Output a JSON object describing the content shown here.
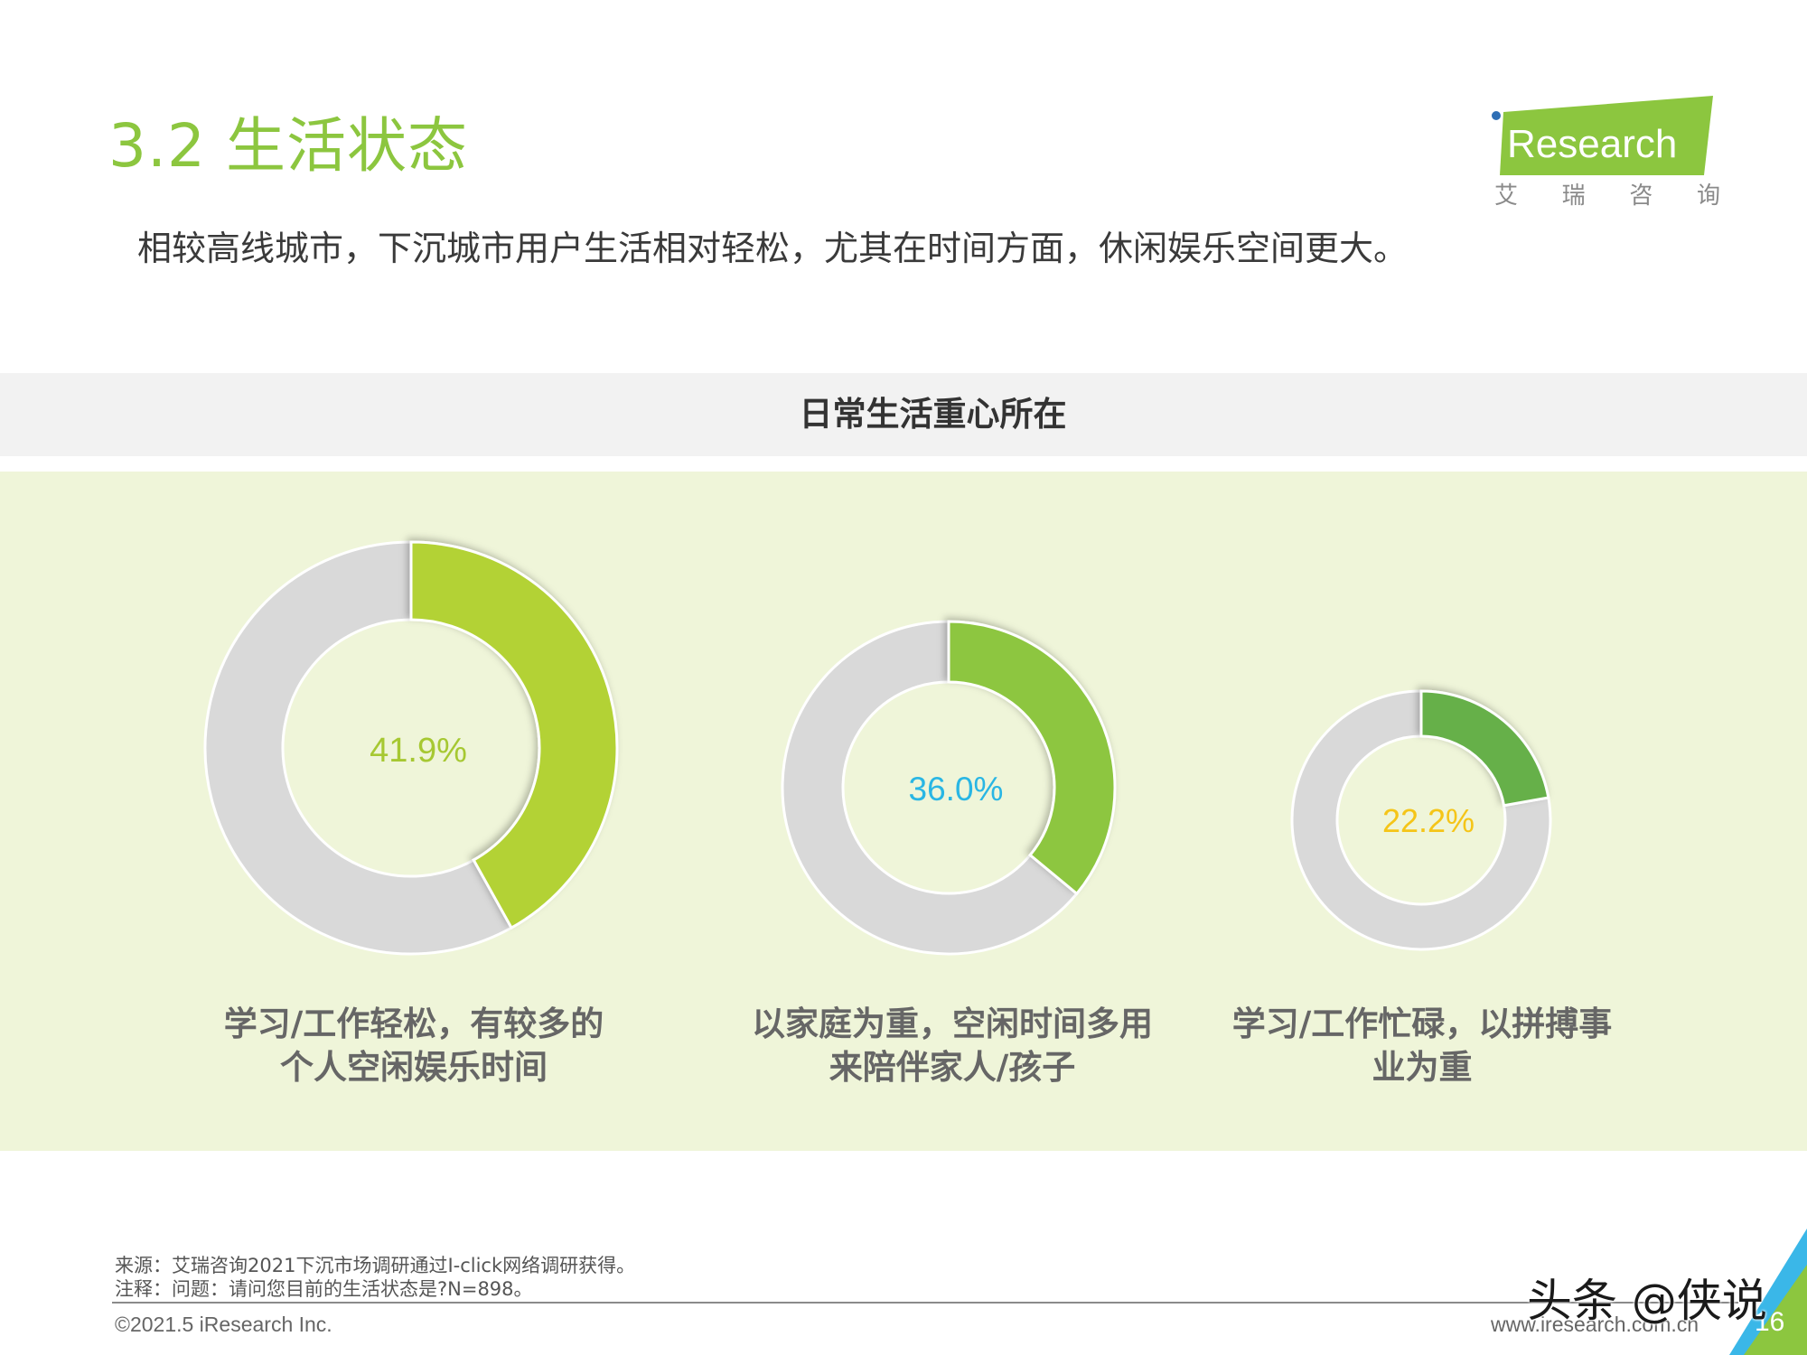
{
  "header": {
    "title": "3.2 生活状态",
    "subtitle": "相较高线城市，下沉城市用户生活相对轻松，尤其在时间方面，休闲娱乐空间更大。",
    "logo_text": "Research",
    "logo_cn": [
      "艾",
      "瑞",
      "咨",
      "询"
    ]
  },
  "chart_data": {
    "type": "pie",
    "title": "日常生活重心所在",
    "series": [
      {
        "label": "学习/工作轻松，有较多的个人空闲娱乐时间",
        "value_label": "41.9%",
        "value": 41.9,
        "color": "#b3d235",
        "value_color": "#a6c832"
      },
      {
        "label": "以家庭为重，空闲时间多用来陪伴家人/孩子",
        "value_label": "36.0%",
        "value": 36.0,
        "color": "#8dc63f",
        "value_color": "#29b6e4"
      },
      {
        "label": "学习/工作忙碌，以拼搏事业为重",
        "value_label": "22.2%",
        "value": 22.2,
        "color": "#66b04a",
        "value_color": "#f5c518"
      }
    ],
    "remainder_color": "#d9d9d9",
    "legend": false,
    "grid": false
  },
  "labels": {
    "cat1_line1": "学习/工作轻松，有较多的",
    "cat1_line2": "个人空闲娱乐时间",
    "cat2_line1": "以家庭为重，空闲时间多用",
    "cat2_line2": "来陪伴家人/孩子",
    "cat3_line1": "学习/工作忙碌，以拼搏事",
    "cat3_line2": "业为重"
  },
  "footer": {
    "source": "来源：艾瑞咨询2021下沉市场调研通过I-click网络调研获得。",
    "note": "注释：问题：请问您目前的生活状态是?N=898。",
    "copyright": "©2021.5 iResearch Inc.",
    "website": "www.iresearch.com.cn",
    "watermark": "头条 @侠说",
    "page_number": "16"
  },
  "colors": {
    "accent": "#8cc63f",
    "panel": "#eff5d9",
    "band": "#f2f2f2"
  }
}
